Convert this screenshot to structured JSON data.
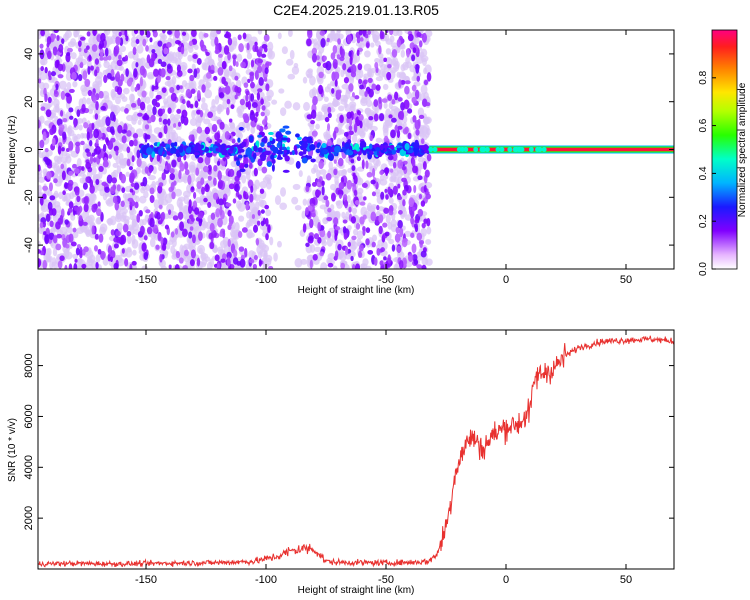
{
  "title": "C2E4.2025.219.01.13.R05",
  "colors": {
    "snr_line": "#e8312f",
    "scatter_primary": "#6a00e0",
    "scatter_light": "#d9c4f5"
  },
  "chart_data": [
    {
      "type": "heatmap",
      "title": "C2E4.2025.219.01.13.R05",
      "xlabel": "Height of straight line (km)",
      "ylabel": "Frequency (Hz)",
      "xlim": [
        -195,
        70
      ],
      "ylim": [
        -50,
        50
      ],
      "xticks": [
        -150,
        -100,
        -50,
        0,
        50
      ],
      "yticks": [
        -40,
        -20,
        0,
        20,
        40
      ],
      "grid": false,
      "colorbar": {
        "label": "Normalized spectral amplitude",
        "range": [
          0,
          1
        ],
        "ticks": [
          "0.0",
          "0.2",
          "0.4",
          "0.6",
          "0.8"
        ]
      },
      "features": {
        "noise_region_x": [
          -195,
          -32
        ],
        "sparse_gap_x": [
          -98,
          -83
        ],
        "signal_band_x": [
          -32,
          70
        ],
        "signal_frequency_hz": 0,
        "signal_amplitude": 0.95
      }
    },
    {
      "type": "line",
      "xlabel": "Height of straight line (km)",
      "ylabel": "SNR (10 * v/v)",
      "xlim": [
        -195,
        70
      ],
      "ylim": [
        0,
        9400
      ],
      "xticks": [
        -150,
        -100,
        -50,
        0,
        50
      ],
      "yticks": [
        2000,
        4000,
        6000,
        8000
      ],
      "grid": false,
      "series": [
        {
          "x": [
            -195,
            -180,
            -160,
            -140,
            -120,
            -105,
            -95,
            -90,
            -85,
            -80,
            -75,
            -70,
            -60,
            -50,
            -40,
            -32,
            -28,
            -25,
            -23,
            -22,
            -20,
            -18,
            -15,
            -12,
            -10,
            -5,
            0,
            5,
            10,
            12,
            15,
            20,
            25,
            30,
            40,
            50,
            60,
            70
          ],
          "y": [
            200,
            220,
            200,
            230,
            250,
            300,
            500,
            700,
            800,
            800,
            300,
            260,
            250,
            240,
            260,
            300,
            700,
            1700,
            2600,
            3400,
            4200,
            4600,
            5200,
            5000,
            4700,
            5300,
            5600,
            5700,
            6200,
            7500,
            7700,
            7900,
            8400,
            8700,
            8950,
            9000,
            9050,
            8950
          ]
        }
      ]
    }
  ]
}
